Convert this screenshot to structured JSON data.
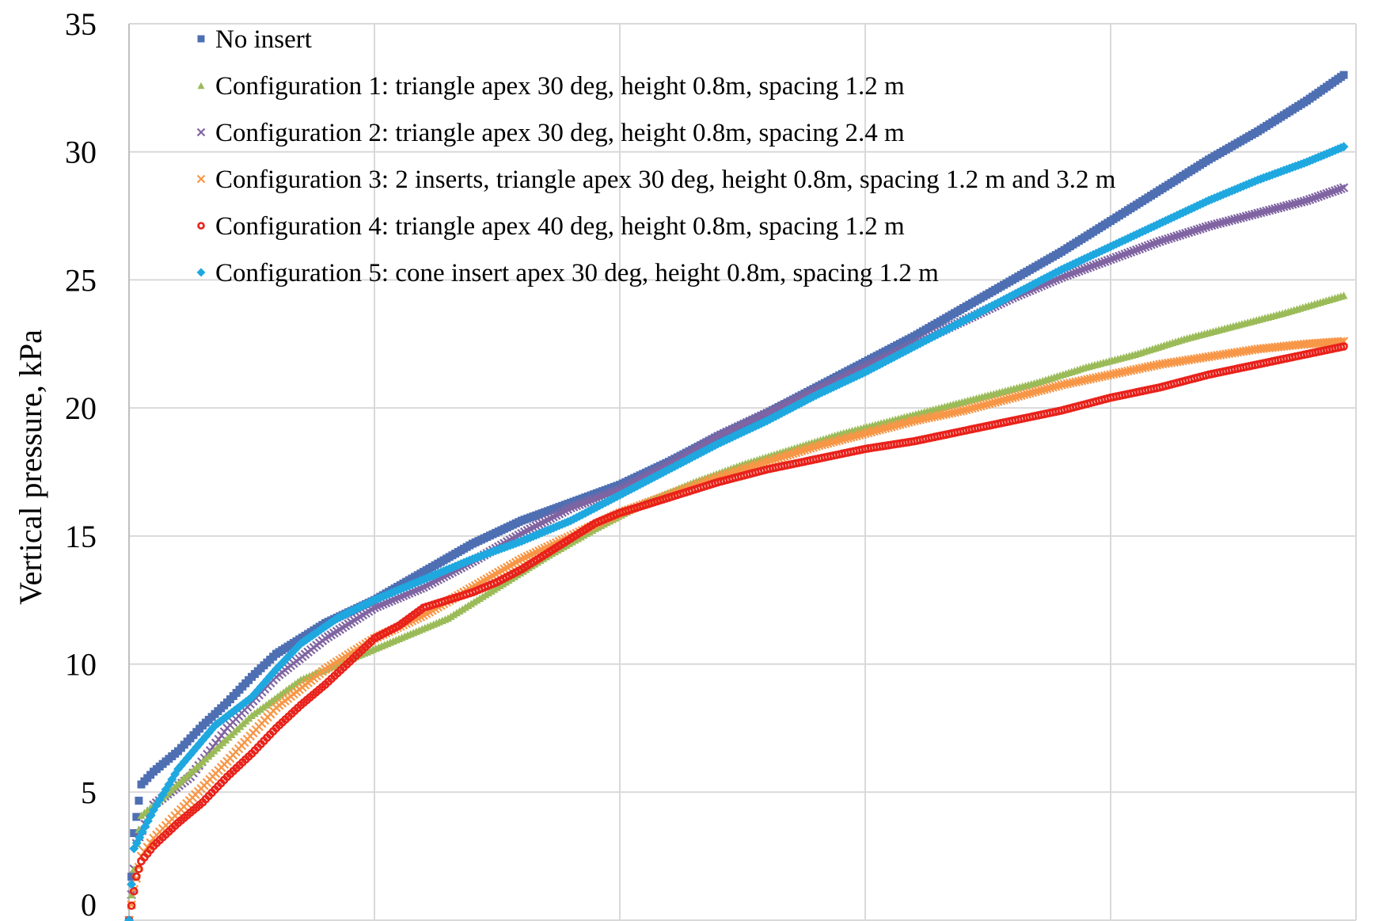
{
  "chart_data": {
    "type": "scatter",
    "title": "",
    "xlabel": "",
    "ylabel": "Vertical pressure, kPa",
    "ylim": [
      0,
      35
    ],
    "yticks": [
      0,
      5,
      10,
      15,
      20,
      25,
      30,
      35
    ],
    "xlim": [
      0,
      5
    ],
    "x_tick_labels_visible": false,
    "grid": true,
    "legend_position": "top-left",
    "series": [
      {
        "name": "No insert",
        "marker": "square",
        "color": "#4f6fb3",
        "points": [
          [
            0,
            0
          ],
          [
            0.02,
            3.4
          ],
          [
            0.05,
            5.3
          ],
          [
            0.1,
            5.8
          ],
          [
            0.2,
            6.6
          ],
          [
            0.3,
            7.6
          ],
          [
            0.4,
            8.5
          ],
          [
            0.5,
            9.5
          ],
          [
            0.6,
            10.4
          ],
          [
            0.8,
            11.6
          ],
          [
            1.0,
            12.5
          ],
          [
            1.2,
            13.6
          ],
          [
            1.4,
            14.7
          ],
          [
            1.6,
            15.6
          ],
          [
            1.8,
            16.3
          ],
          [
            2.0,
            17.0
          ],
          [
            2.2,
            17.9
          ],
          [
            2.4,
            18.9
          ],
          [
            2.6,
            19.8
          ],
          [
            2.8,
            20.8
          ],
          [
            3.0,
            21.8
          ],
          [
            3.2,
            22.8
          ],
          [
            3.4,
            23.9
          ],
          [
            3.6,
            25.0
          ],
          [
            3.8,
            26.1
          ],
          [
            4.0,
            27.3
          ],
          [
            4.2,
            28.5
          ],
          [
            4.4,
            29.7
          ],
          [
            4.6,
            30.8
          ],
          [
            4.8,
            32.0
          ],
          [
            4.95,
            33.0
          ]
        ]
      },
      {
        "name": "Configuration 1: triangle apex 30 deg, height 0.8m, spacing 1.2 m",
        "marker": "triangle",
        "color": "#9bbb59",
        "points": [
          [
            0,
            0
          ],
          [
            0.03,
            3.0
          ],
          [
            0.05,
            4.1
          ],
          [
            0.15,
            4.9
          ],
          [
            0.3,
            6.2
          ],
          [
            0.5,
            8.0
          ],
          [
            0.7,
            9.4
          ],
          [
            0.9,
            10.2
          ],
          [
            1.1,
            11.0
          ],
          [
            1.3,
            11.8
          ],
          [
            1.5,
            13.0
          ],
          [
            1.7,
            14.2
          ],
          [
            1.9,
            15.3
          ],
          [
            2.1,
            16.3
          ],
          [
            2.3,
            17.1
          ],
          [
            2.5,
            17.8
          ],
          [
            2.7,
            18.4
          ],
          [
            2.9,
            19.0
          ],
          [
            3.1,
            19.5
          ],
          [
            3.3,
            20.0
          ],
          [
            3.5,
            20.5
          ],
          [
            3.7,
            21.0
          ],
          [
            3.9,
            21.6
          ],
          [
            4.1,
            22.1
          ],
          [
            4.3,
            22.7
          ],
          [
            4.5,
            23.2
          ],
          [
            4.7,
            23.7
          ],
          [
            4.95,
            24.4
          ]
        ]
      },
      {
        "name": "Configuration 2: triangle apex 30 deg, height 0.8m, spacing 2.4 m",
        "marker": "x",
        "color": "#8064a2",
        "points": [
          [
            0,
            0
          ],
          [
            0.03,
            3.0
          ],
          [
            0.1,
            4.5
          ],
          [
            0.25,
            5.6
          ],
          [
            0.4,
            7.5
          ],
          [
            0.6,
            9.5
          ],
          [
            0.8,
            11.0
          ],
          [
            1.0,
            12.2
          ],
          [
            1.2,
            13.0
          ],
          [
            1.4,
            14.0
          ],
          [
            1.6,
            15.1
          ],
          [
            1.8,
            16.1
          ],
          [
            2.0,
            16.8
          ],
          [
            2.2,
            17.8
          ],
          [
            2.4,
            18.9
          ],
          [
            2.6,
            19.8
          ],
          [
            2.8,
            20.7
          ],
          [
            3.0,
            21.6
          ],
          [
            3.2,
            22.5
          ],
          [
            3.4,
            23.4
          ],
          [
            3.6,
            24.3
          ],
          [
            3.8,
            25.1
          ],
          [
            4.0,
            25.8
          ],
          [
            4.2,
            26.5
          ],
          [
            4.4,
            27.1
          ],
          [
            4.6,
            27.6
          ],
          [
            4.8,
            28.1
          ],
          [
            4.95,
            28.6
          ]
        ]
      },
      {
        "name": "Configuration 3: 2 inserts, triangle apex 30 deg, height 0.8m, spacing 1.2 m and 3.2 m",
        "marker": "x",
        "color": "#f79646",
        "points": [
          [
            0,
            0
          ],
          [
            0.02,
            1.2
          ],
          [
            0.05,
            2.5
          ],
          [
            0.1,
            3.2
          ],
          [
            0.2,
            4.2
          ],
          [
            0.4,
            6.2
          ],
          [
            0.6,
            8.3
          ],
          [
            0.8,
            9.8
          ],
          [
            1.0,
            11.0
          ],
          [
            1.2,
            11.9
          ],
          [
            1.4,
            13.0
          ],
          [
            1.6,
            14.1
          ],
          [
            1.8,
            15.0
          ],
          [
            2.0,
            15.9
          ],
          [
            2.2,
            16.6
          ],
          [
            2.4,
            17.3
          ],
          [
            2.6,
            17.9
          ],
          [
            2.8,
            18.5
          ],
          [
            3.0,
            19.0
          ],
          [
            3.2,
            19.5
          ],
          [
            3.4,
            19.9
          ],
          [
            3.6,
            20.4
          ],
          [
            3.8,
            20.9
          ],
          [
            4.0,
            21.3
          ],
          [
            4.2,
            21.7
          ],
          [
            4.4,
            22.0
          ],
          [
            4.6,
            22.3
          ],
          [
            4.8,
            22.5
          ],
          [
            4.95,
            22.6
          ]
        ]
      },
      {
        "name": "Configuration 4: triangle apex 40 deg, height 0.8m, spacing 1.2 m",
        "marker": "circle",
        "color": "#e8221b",
        "points": [
          [
            0,
            0
          ],
          [
            0.03,
            1.7
          ],
          [
            0.05,
            2.3
          ],
          [
            0.1,
            2.9
          ],
          [
            0.2,
            3.8
          ],
          [
            0.3,
            4.6
          ],
          [
            0.4,
            5.6
          ],
          [
            0.5,
            6.5
          ],
          [
            0.6,
            7.5
          ],
          [
            0.7,
            8.4
          ],
          [
            0.8,
            9.2
          ],
          [
            0.9,
            10.1
          ],
          [
            1.0,
            11.0
          ],
          [
            1.1,
            11.5
          ],
          [
            1.2,
            12.2
          ],
          [
            1.3,
            12.5
          ],
          [
            1.4,
            12.8
          ],
          [
            1.5,
            13.2
          ],
          [
            1.6,
            13.7
          ],
          [
            1.7,
            14.3
          ],
          [
            1.8,
            14.9
          ],
          [
            1.9,
            15.5
          ],
          [
            2.0,
            15.9
          ],
          [
            2.2,
            16.5
          ],
          [
            2.4,
            17.1
          ],
          [
            2.6,
            17.6
          ],
          [
            2.8,
            18.0
          ],
          [
            3.0,
            18.4
          ],
          [
            3.2,
            18.7
          ],
          [
            3.4,
            19.1
          ],
          [
            3.6,
            19.5
          ],
          [
            3.8,
            19.9
          ],
          [
            4.0,
            20.4
          ],
          [
            4.2,
            20.8
          ],
          [
            4.4,
            21.3
          ],
          [
            4.6,
            21.7
          ],
          [
            4.8,
            22.1
          ],
          [
            4.95,
            22.4
          ]
        ]
      },
      {
        "name": "Configuration 5: cone insert apex 30 deg, height 0.8m, spacing 1.2 m",
        "marker": "diamond",
        "color": "#1fa8e0",
        "points": [
          [
            0,
            0
          ],
          [
            0.02,
            2.8
          ],
          [
            0.1,
            4.3
          ],
          [
            0.2,
            5.9
          ],
          [
            0.35,
            7.6
          ],
          [
            0.5,
            8.7
          ],
          [
            0.6,
            9.8
          ],
          [
            0.7,
            10.8
          ],
          [
            0.85,
            11.8
          ],
          [
            1.0,
            12.5
          ],
          [
            1.2,
            13.3
          ],
          [
            1.4,
            14.1
          ],
          [
            1.6,
            14.8
          ],
          [
            1.8,
            15.6
          ],
          [
            2.0,
            16.6
          ],
          [
            2.2,
            17.6
          ],
          [
            2.4,
            18.6
          ],
          [
            2.6,
            19.5
          ],
          [
            2.8,
            20.5
          ],
          [
            3.0,
            21.4
          ],
          [
            3.2,
            22.4
          ],
          [
            3.4,
            23.4
          ],
          [
            3.6,
            24.4
          ],
          [
            3.8,
            25.4
          ],
          [
            4.0,
            26.3
          ],
          [
            4.2,
            27.2
          ],
          [
            4.4,
            28.1
          ],
          [
            4.6,
            28.9
          ],
          [
            4.8,
            29.6
          ],
          [
            4.95,
            30.2
          ]
        ]
      }
    ]
  }
}
